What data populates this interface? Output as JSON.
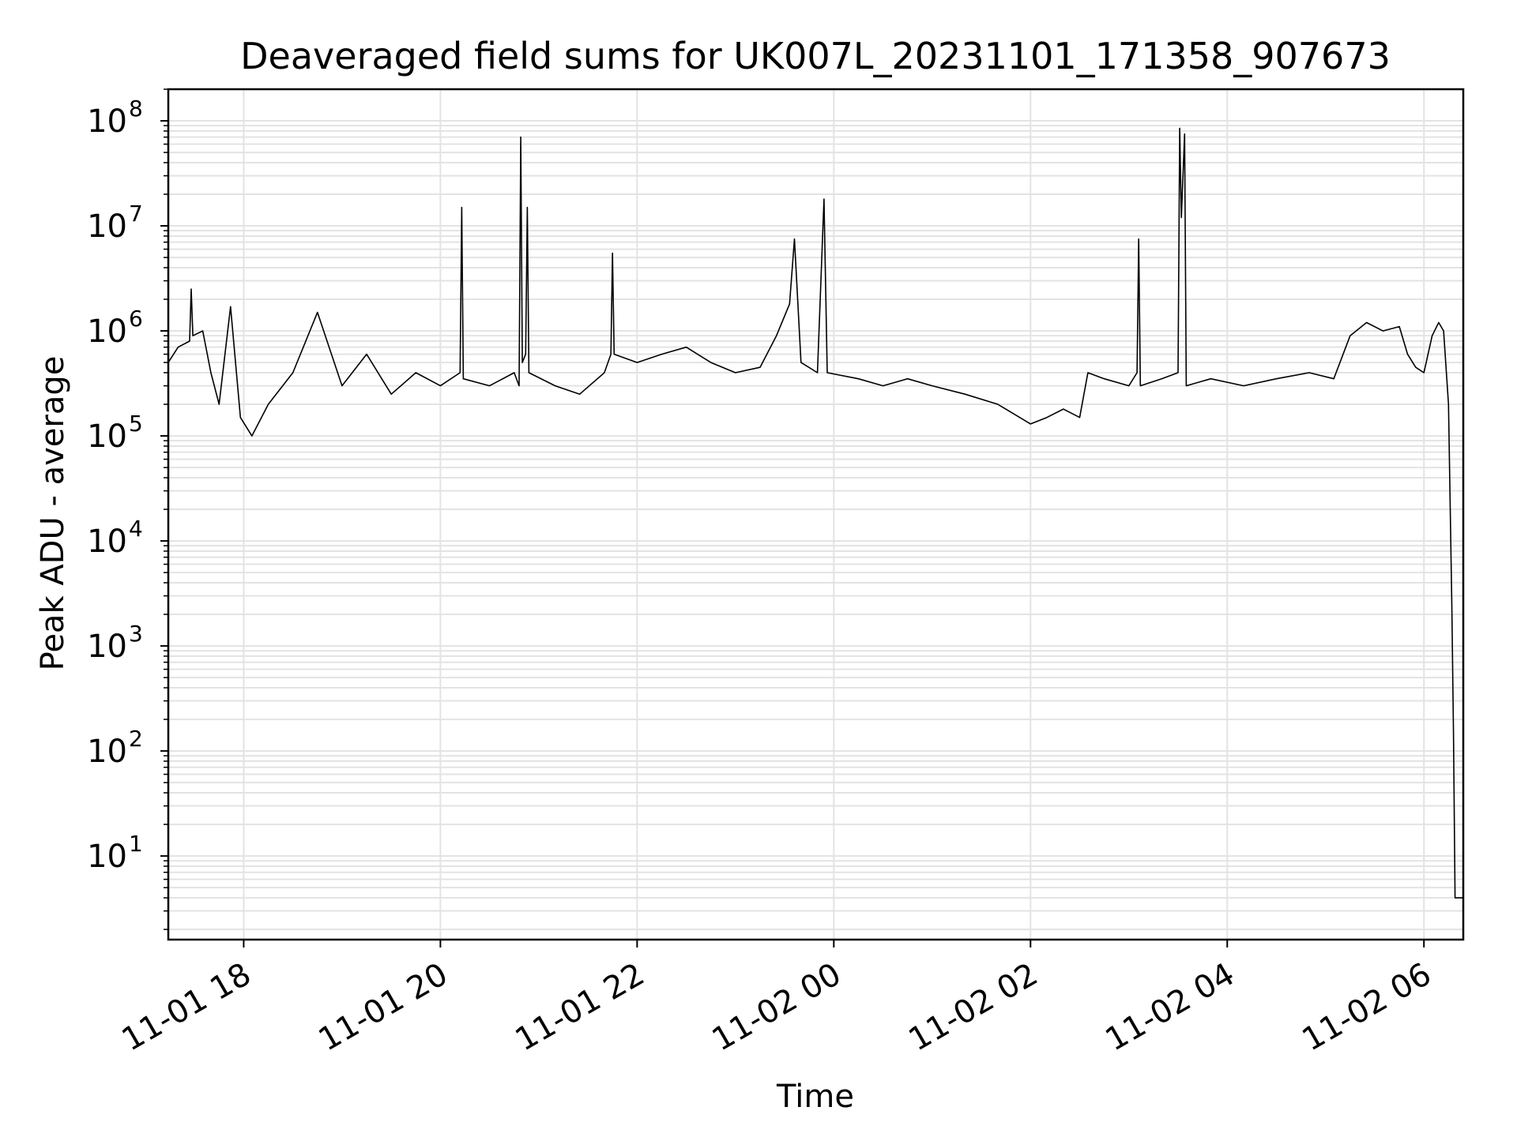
{
  "chart_data": {
    "type": "line",
    "title": "Deaveraged field sums for UK007L_20231101_171358_907673",
    "xlabel": "Time",
    "ylabel": "Peak ADU - average",
    "yscale": "log",
    "ylim": [
      1.6,
      200000000
    ],
    "xlim": [
      "2023-11-01 17:14",
      "2023-11-02 06:24"
    ],
    "x_ticks": [
      {
        "value": "2023-11-01 18:00",
        "label": "11-01 18"
      },
      {
        "value": "2023-11-01 20:00",
        "label": "11-01 20"
      },
      {
        "value": "2023-11-01 22:00",
        "label": "11-01 22"
      },
      {
        "value": "2023-11-02 00:00",
        "label": "11-02 00"
      },
      {
        "value": "2023-11-02 02:00",
        "label": "11-02 02"
      },
      {
        "value": "2023-11-02 04:00",
        "label": "11-02 04"
      },
      {
        "value": "2023-11-02 06:00",
        "label": "11-02 06"
      }
    ],
    "y_ticks": [
      {
        "value": 10,
        "base": "10",
        "exp": "1"
      },
      {
        "value": 100,
        "base": "10",
        "exp": "2"
      },
      {
        "value": 1000,
        "base": "10",
        "exp": "3"
      },
      {
        "value": 10000,
        "base": "10",
        "exp": "4"
      },
      {
        "value": 100000,
        "base": "10",
        "exp": "5"
      },
      {
        "value": 1000000,
        "base": "10",
        "exp": "6"
      },
      {
        "value": 10000000,
        "base": "10",
        "exp": "7"
      },
      {
        "value": 100000000,
        "base": "10",
        "exp": "8"
      }
    ],
    "grid": true,
    "legend": "none",
    "line_color": "#000000",
    "grid_color": "#e3e3e3",
    "series": [
      {
        "points": [
          [
            "2023-11-01 17:14",
            500000
          ],
          [
            "2023-11-01 17:20",
            700000
          ],
          [
            "2023-11-01 17:27",
            800000
          ],
          [
            "2023-11-01 17:28",
            2500000
          ],
          [
            "2023-11-01 17:29",
            900000
          ],
          [
            "2023-11-01 17:35",
            1000000
          ],
          [
            "2023-11-01 17:40",
            400000
          ],
          [
            "2023-11-01 17:45",
            200000
          ],
          [
            "2023-11-01 17:52",
            1700000
          ],
          [
            "2023-11-01 17:58",
            150000
          ],
          [
            "2023-11-01 18:05",
            100000
          ],
          [
            "2023-11-01 18:15",
            200000
          ],
          [
            "2023-11-01 18:30",
            400000
          ],
          [
            "2023-11-01 18:45",
            1500000
          ],
          [
            "2023-11-01 19:00",
            300000
          ],
          [
            "2023-11-01 19:15",
            600000
          ],
          [
            "2023-11-01 19:30",
            250000
          ],
          [
            "2023-11-01 19:45",
            400000
          ],
          [
            "2023-11-01 20:00",
            300000
          ],
          [
            "2023-11-01 20:12",
            400000
          ],
          [
            "2023-11-01 20:13",
            15000000
          ],
          [
            "2023-11-01 20:14",
            350000
          ],
          [
            "2023-11-01 20:30",
            300000
          ],
          [
            "2023-11-01 20:45",
            400000
          ],
          [
            "2023-11-01 20:48",
            300000
          ],
          [
            "2023-11-01 20:49",
            70000000
          ],
          [
            "2023-11-01 20:50",
            500000
          ],
          [
            "2023-11-01 20:52",
            600000
          ],
          [
            "2023-11-01 20:53",
            15000000
          ],
          [
            "2023-11-01 20:54",
            400000
          ],
          [
            "2023-11-01 21:10",
            300000
          ],
          [
            "2023-11-01 21:25",
            250000
          ],
          [
            "2023-11-01 21:40",
            400000
          ],
          [
            "2023-11-01 21:44",
            600000
          ],
          [
            "2023-11-01 21:45",
            5500000
          ],
          [
            "2023-11-01 21:46",
            600000
          ],
          [
            "2023-11-01 22:00",
            500000
          ],
          [
            "2023-11-01 22:15",
            600000
          ],
          [
            "2023-11-01 22:30",
            700000
          ],
          [
            "2023-11-01 22:45",
            500000
          ],
          [
            "2023-11-01 23:00",
            400000
          ],
          [
            "2023-11-01 23:15",
            450000
          ],
          [
            "2023-11-01 23:25",
            900000
          ],
          [
            "2023-11-01 23:33",
            1800000
          ],
          [
            "2023-11-01 23:36",
            7500000
          ],
          [
            "2023-11-01 23:40",
            500000
          ],
          [
            "2023-11-01 23:50",
            400000
          ],
          [
            "2023-11-01 23:54",
            18000000
          ],
          [
            "2023-11-01 23:56",
            400000
          ],
          [
            "2023-11-02 00:15",
            350000
          ],
          [
            "2023-11-02 00:30",
            300000
          ],
          [
            "2023-11-02 00:45",
            350000
          ],
          [
            "2023-11-02 01:00",
            300000
          ],
          [
            "2023-11-02 01:20",
            250000
          ],
          [
            "2023-11-02 01:40",
            200000
          ],
          [
            "2023-11-02 02:00",
            130000
          ],
          [
            "2023-11-02 02:10",
            150000
          ],
          [
            "2023-11-02 02:20",
            180000
          ],
          [
            "2023-11-02 02:30",
            150000
          ],
          [
            "2023-11-02 02:35",
            400000
          ],
          [
            "2023-11-02 02:45",
            350000
          ],
          [
            "2023-11-02 03:00",
            300000
          ],
          [
            "2023-11-02 03:05",
            400000
          ],
          [
            "2023-11-02 03:06",
            7500000
          ],
          [
            "2023-11-02 03:07",
            300000
          ],
          [
            "2023-11-02 03:20",
            350000
          ],
          [
            "2023-11-02 03:30",
            400000
          ],
          [
            "2023-11-02 03:31",
            85000000
          ],
          [
            "2023-11-02 03:32",
            12000000
          ],
          [
            "2023-11-02 03:34",
            75000000
          ],
          [
            "2023-11-02 03:35",
            300000
          ],
          [
            "2023-11-02 03:50",
            350000
          ],
          [
            "2023-11-02 04:10",
            300000
          ],
          [
            "2023-11-02 04:30",
            350000
          ],
          [
            "2023-11-02 04:50",
            400000
          ],
          [
            "2023-11-02 05:05",
            350000
          ],
          [
            "2023-11-02 05:15",
            900000
          ],
          [
            "2023-11-02 05:25",
            1200000
          ],
          [
            "2023-11-02 05:35",
            1000000
          ],
          [
            "2023-11-02 05:45",
            1100000
          ],
          [
            "2023-11-02 05:50",
            600000
          ],
          [
            "2023-11-02 05:55",
            450000
          ],
          [
            "2023-11-02 06:00",
            400000
          ],
          [
            "2023-11-02 06:05",
            900000
          ],
          [
            "2023-11-02 06:09",
            1200000
          ],
          [
            "2023-11-02 06:12",
            1000000
          ],
          [
            "2023-11-02 06:15",
            200000
          ],
          [
            "2023-11-02 06:17",
            2500
          ],
          [
            "2023-11-02 06:18",
            150
          ],
          [
            "2023-11-02 06:19",
            4
          ],
          [
            "2023-11-02 06:24",
            4
          ]
        ]
      }
    ]
  }
}
